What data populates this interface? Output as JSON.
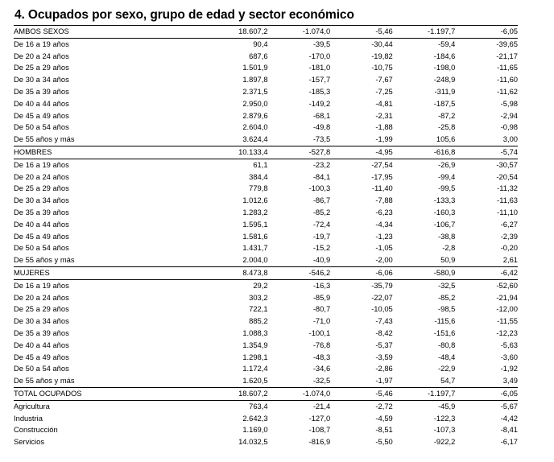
{
  "title": "4. Ocupados por sexo, grupo de edad y sector económico",
  "rows": [
    {
      "label": "AMBOS SEXOS",
      "values": [
        "18.607,2",
        "-1.074,0",
        "-5,46",
        "-1.197,7",
        "-6,05"
      ],
      "section": true
    },
    {
      "label": "De 16 a 19 años",
      "values": [
        "90,4",
        "-39,5",
        "-30,44",
        "-59,4",
        "-39,65"
      ]
    },
    {
      "label": "De 20 a 24 años",
      "values": [
        "687,6",
        "-170,0",
        "-19,82",
        "-184,6",
        "-21,17"
      ]
    },
    {
      "label": "De 25 a 29 años",
      "values": [
        "1.501,9",
        "-181,0",
        "-10,75",
        "-198,0",
        "-11,65"
      ]
    },
    {
      "label": "De 30 a 34 años",
      "values": [
        "1.897,8",
        "-157,7",
        "-7,67",
        "-248,9",
        "-11,60"
      ]
    },
    {
      "label": "De 35 a 39 años",
      "values": [
        "2.371,5",
        "-185,3",
        "-7,25",
        "-311,9",
        "-11,62"
      ]
    },
    {
      "label": "De 40 a 44 años",
      "values": [
        "2.950,0",
        "-149,2",
        "-4,81",
        "-187,5",
        "-5,98"
      ]
    },
    {
      "label": "De 45 a 49 años",
      "values": [
        "2.879,6",
        "-68,1",
        "-2,31",
        "-87,2",
        "-2,94"
      ]
    },
    {
      "label": "De 50 a 54 años",
      "values": [
        "2.604,0",
        "-49,8",
        "-1,88",
        "-25,8",
        "-0,98"
      ]
    },
    {
      "label": "De 55 años y más",
      "values": [
        "3.624,4",
        "-73,5",
        "-1,99",
        "105,6",
        "3,00"
      ]
    },
    {
      "label": "HOMBRES",
      "values": [
        "10.133,4",
        "-527,8",
        "-4,95",
        "-616,8",
        "-5,74"
      ],
      "section": true
    },
    {
      "label": "De 16 a 19 años",
      "values": [
        "61,1",
        "-23,2",
        "-27,54",
        "-26,9",
        "-30,57"
      ]
    },
    {
      "label": "De 20 a 24 años",
      "values": [
        "384,4",
        "-84,1",
        "-17,95",
        "-99,4",
        "-20,54"
      ]
    },
    {
      "label": "De 25 a 29 años",
      "values": [
        "779,8",
        "-100,3",
        "-11,40",
        "-99,5",
        "-11,32"
      ]
    },
    {
      "label": "De 30 a 34 años",
      "values": [
        "1.012,6",
        "-86,7",
        "-7,88",
        "-133,3",
        "-11,63"
      ]
    },
    {
      "label": "De 35 a 39 años",
      "values": [
        "1.283,2",
        "-85,2",
        "-6,23",
        "-160,3",
        "-11,10"
      ]
    },
    {
      "label": "De 40 a 44 años",
      "values": [
        "1.595,1",
        "-72,4",
        "-4,34",
        "-106,7",
        "-6,27"
      ]
    },
    {
      "label": "De 45 a 49 años",
      "values": [
        "1.581,6",
        "-19,7",
        "-1,23",
        "-38,8",
        "-2,39"
      ]
    },
    {
      "label": "De 50 a 54 años",
      "values": [
        "1.431,7",
        "-15,2",
        "-1,05",
        "-2,8",
        "-0,20"
      ]
    },
    {
      "label": "De 55 años y más",
      "values": [
        "2.004,0",
        "-40,9",
        "-2,00",
        "50,9",
        "2,61"
      ]
    },
    {
      "label": "MUJERES",
      "values": [
        "8.473,8",
        "-546,2",
        "-6,06",
        "-580,9",
        "-6,42"
      ],
      "section": true
    },
    {
      "label": "De 16 a 19 años",
      "values": [
        "29,2",
        "-16,3",
        "-35,79",
        "-32,5",
        "-52,60"
      ]
    },
    {
      "label": "De 20 a 24 años",
      "values": [
        "303,2",
        "-85,9",
        "-22,07",
        "-85,2",
        "-21,94"
      ]
    },
    {
      "label": "De 25 a 29 años",
      "values": [
        "722,1",
        "-80,7",
        "-10,05",
        "-98,5",
        "-12,00"
      ]
    },
    {
      "label": "De 30 a 34 años",
      "values": [
        "885,2",
        "-71,0",
        "-7,43",
        "-115,6",
        "-11,55"
      ]
    },
    {
      "label": "De 35 a 39 años",
      "values": [
        "1.088,3",
        "-100,1",
        "-8,42",
        "-151,6",
        "-12,23"
      ]
    },
    {
      "label": "De 40 a 44 años",
      "values": [
        "1.354,9",
        "-76,8",
        "-5,37",
        "-80,8",
        "-5,63"
      ]
    },
    {
      "label": "De 45 a 49 años",
      "values": [
        "1.298,1",
        "-48,3",
        "-3,59",
        "-48,4",
        "-3,60"
      ]
    },
    {
      "label": "De 50 a 54 años",
      "values": [
        "1.172,4",
        "-34,6",
        "-2,86",
        "-22,9",
        "-1,92"
      ]
    },
    {
      "label": "De 55 años y más",
      "values": [
        "1.620,5",
        "-32,5",
        "-1,97",
        "54,7",
        "3,49"
      ]
    },
    {
      "label": "TOTAL OCUPADOS",
      "values": [
        "18.607,2",
        "-1.074,0",
        "-5,46",
        "-1.197,7",
        "-6,05"
      ],
      "section": true
    },
    {
      "label": "Agricultura",
      "values": [
        "763,4",
        "-21,4",
        "-2,72",
        "-45,9",
        "-5,67"
      ]
    },
    {
      "label": "Industria",
      "values": [
        "2.642,3",
        "-127,0",
        "-4,59",
        "-122,3",
        "-4,42"
      ]
    },
    {
      "label": "Construcción",
      "values": [
        "1.169,0",
        "-108,7",
        "-8,51",
        "-107,3",
        "-8,41"
      ]
    },
    {
      "label": "Servicios",
      "values": [
        "14.032,5",
        "-816,9",
        "-5,50",
        "-922,2",
        "-6,17"
      ]
    }
  ]
}
